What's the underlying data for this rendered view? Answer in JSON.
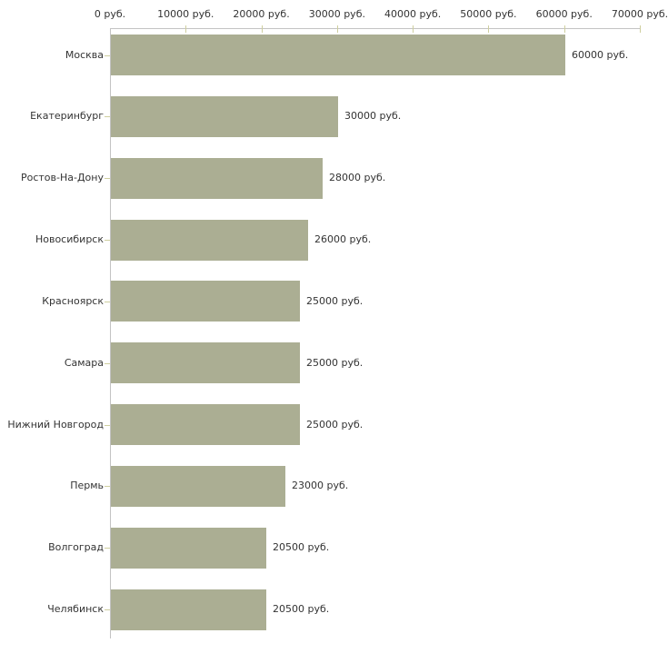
{
  "chart_data": {
    "type": "bar",
    "orientation": "horizontal",
    "title": "",
    "categories": [
      "Москва",
      "Екатеринбург",
      "Ростов-На-Дону",
      "Новосибирск",
      "Красноярск",
      "Самара",
      "Нижний Новгород",
      "Пермь",
      "Волгоград",
      "Челябинск"
    ],
    "values": [
      60000,
      30000,
      28000,
      26000,
      25000,
      25000,
      25000,
      23000,
      20500,
      20500
    ],
    "value_labels": [
      "60000 руб.",
      "30000 руб.",
      "28000 руб.",
      "26000 руб.",
      "25000 руб.",
      "25000 руб.",
      "25000 руб.",
      "23000 руб.",
      "20500 руб.",
      "20500 руб."
    ],
    "unit": "руб.",
    "x_axis": {
      "position": "top",
      "xlim": [
        0,
        70000
      ],
      "ticks": [
        0,
        10000,
        20000,
        30000,
        40000,
        50000,
        60000,
        70000
      ],
      "tick_labels": [
        "0 руб.",
        "10000 руб.",
        "20000 руб.",
        "30000 руб.",
        "40000 руб.",
        "50000 руб.",
        "60000 руб.",
        "70000 руб."
      ]
    },
    "grid": false,
    "legend": false,
    "colors": {
      "bar_fill": "#ABAE93",
      "axis_line": "#C3C3C3",
      "tick_mark": "#CFCF9F",
      "text": "#333333",
      "background": "#FFFFFF"
    }
  }
}
